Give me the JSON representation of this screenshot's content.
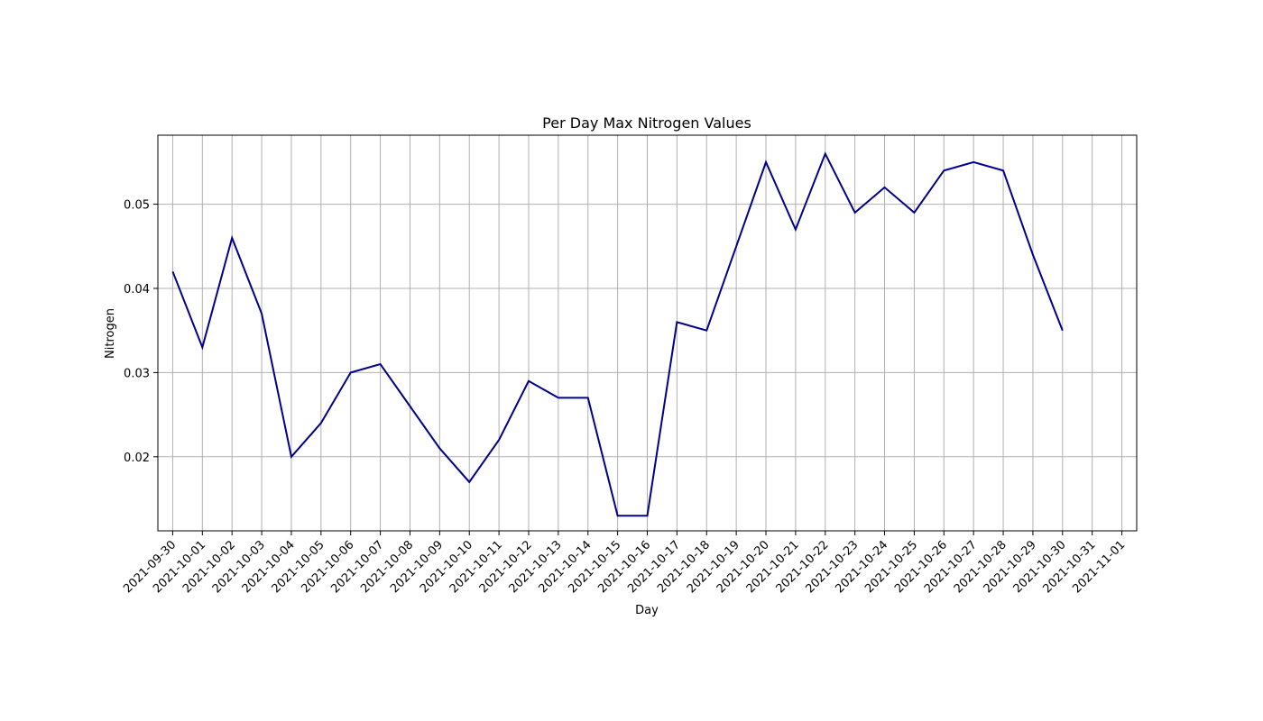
{
  "chart_data": {
    "type": "line",
    "title": "Per Day Max Nitrogen Values",
    "xlabel": "Day",
    "ylabel": "Nitrogen",
    "grid": true,
    "line_color": "#00008b",
    "xlim": [
      "2021-09-29",
      "2021-11-01"
    ],
    "ylim": [
      0.0112,
      0.0582
    ],
    "x_ticks": [
      "2021-09-30",
      "2021-10-01",
      "2021-10-02",
      "2021-10-03",
      "2021-10-04",
      "2021-10-05",
      "2021-10-06",
      "2021-10-07",
      "2021-10-08",
      "2021-10-09",
      "2021-10-10",
      "2021-10-11",
      "2021-10-12",
      "2021-10-13",
      "2021-10-14",
      "2021-10-15",
      "2021-10-16",
      "2021-10-17",
      "2021-10-18",
      "2021-10-19",
      "2021-10-20",
      "2021-10-21",
      "2021-10-22",
      "2021-10-23",
      "2021-10-24",
      "2021-10-25",
      "2021-10-26",
      "2021-10-27",
      "2021-10-28",
      "2021-10-29",
      "2021-10-30",
      "2021-10-31",
      "2021-11-01"
    ],
    "y_ticks": [
      0.02,
      0.03,
      0.04,
      0.05
    ],
    "series": [
      {
        "x": [
          "2021-09-30",
          "2021-10-01",
          "2021-10-02",
          "2021-10-03",
          "2021-10-04",
          "2021-10-05",
          "2021-10-06",
          "2021-10-07",
          "2021-10-08",
          "2021-10-09",
          "2021-10-10",
          "2021-10-11",
          "2021-10-12",
          "2021-10-13",
          "2021-10-14",
          "2021-10-15",
          "2021-10-16",
          "2021-10-17",
          "2021-10-18",
          "2021-10-19",
          "2021-10-20",
          "2021-10-21",
          "2021-10-22",
          "2021-10-23",
          "2021-10-24",
          "2021-10-25",
          "2021-10-26",
          "2021-10-27",
          "2021-10-28",
          "2021-10-29",
          "2021-10-30"
        ],
        "values": [
          0.042,
          0.033,
          0.046,
          0.037,
          0.02,
          0.024,
          0.03,
          0.031,
          0.026,
          0.021,
          0.017,
          0.022,
          0.029,
          0.027,
          0.027,
          0.013,
          0.013,
          0.036,
          0.035,
          0.045,
          0.055,
          0.047,
          0.056,
          0.049,
          0.052,
          0.049,
          0.054,
          0.055,
          0.054,
          0.044,
          0.035
        ]
      }
    ]
  }
}
